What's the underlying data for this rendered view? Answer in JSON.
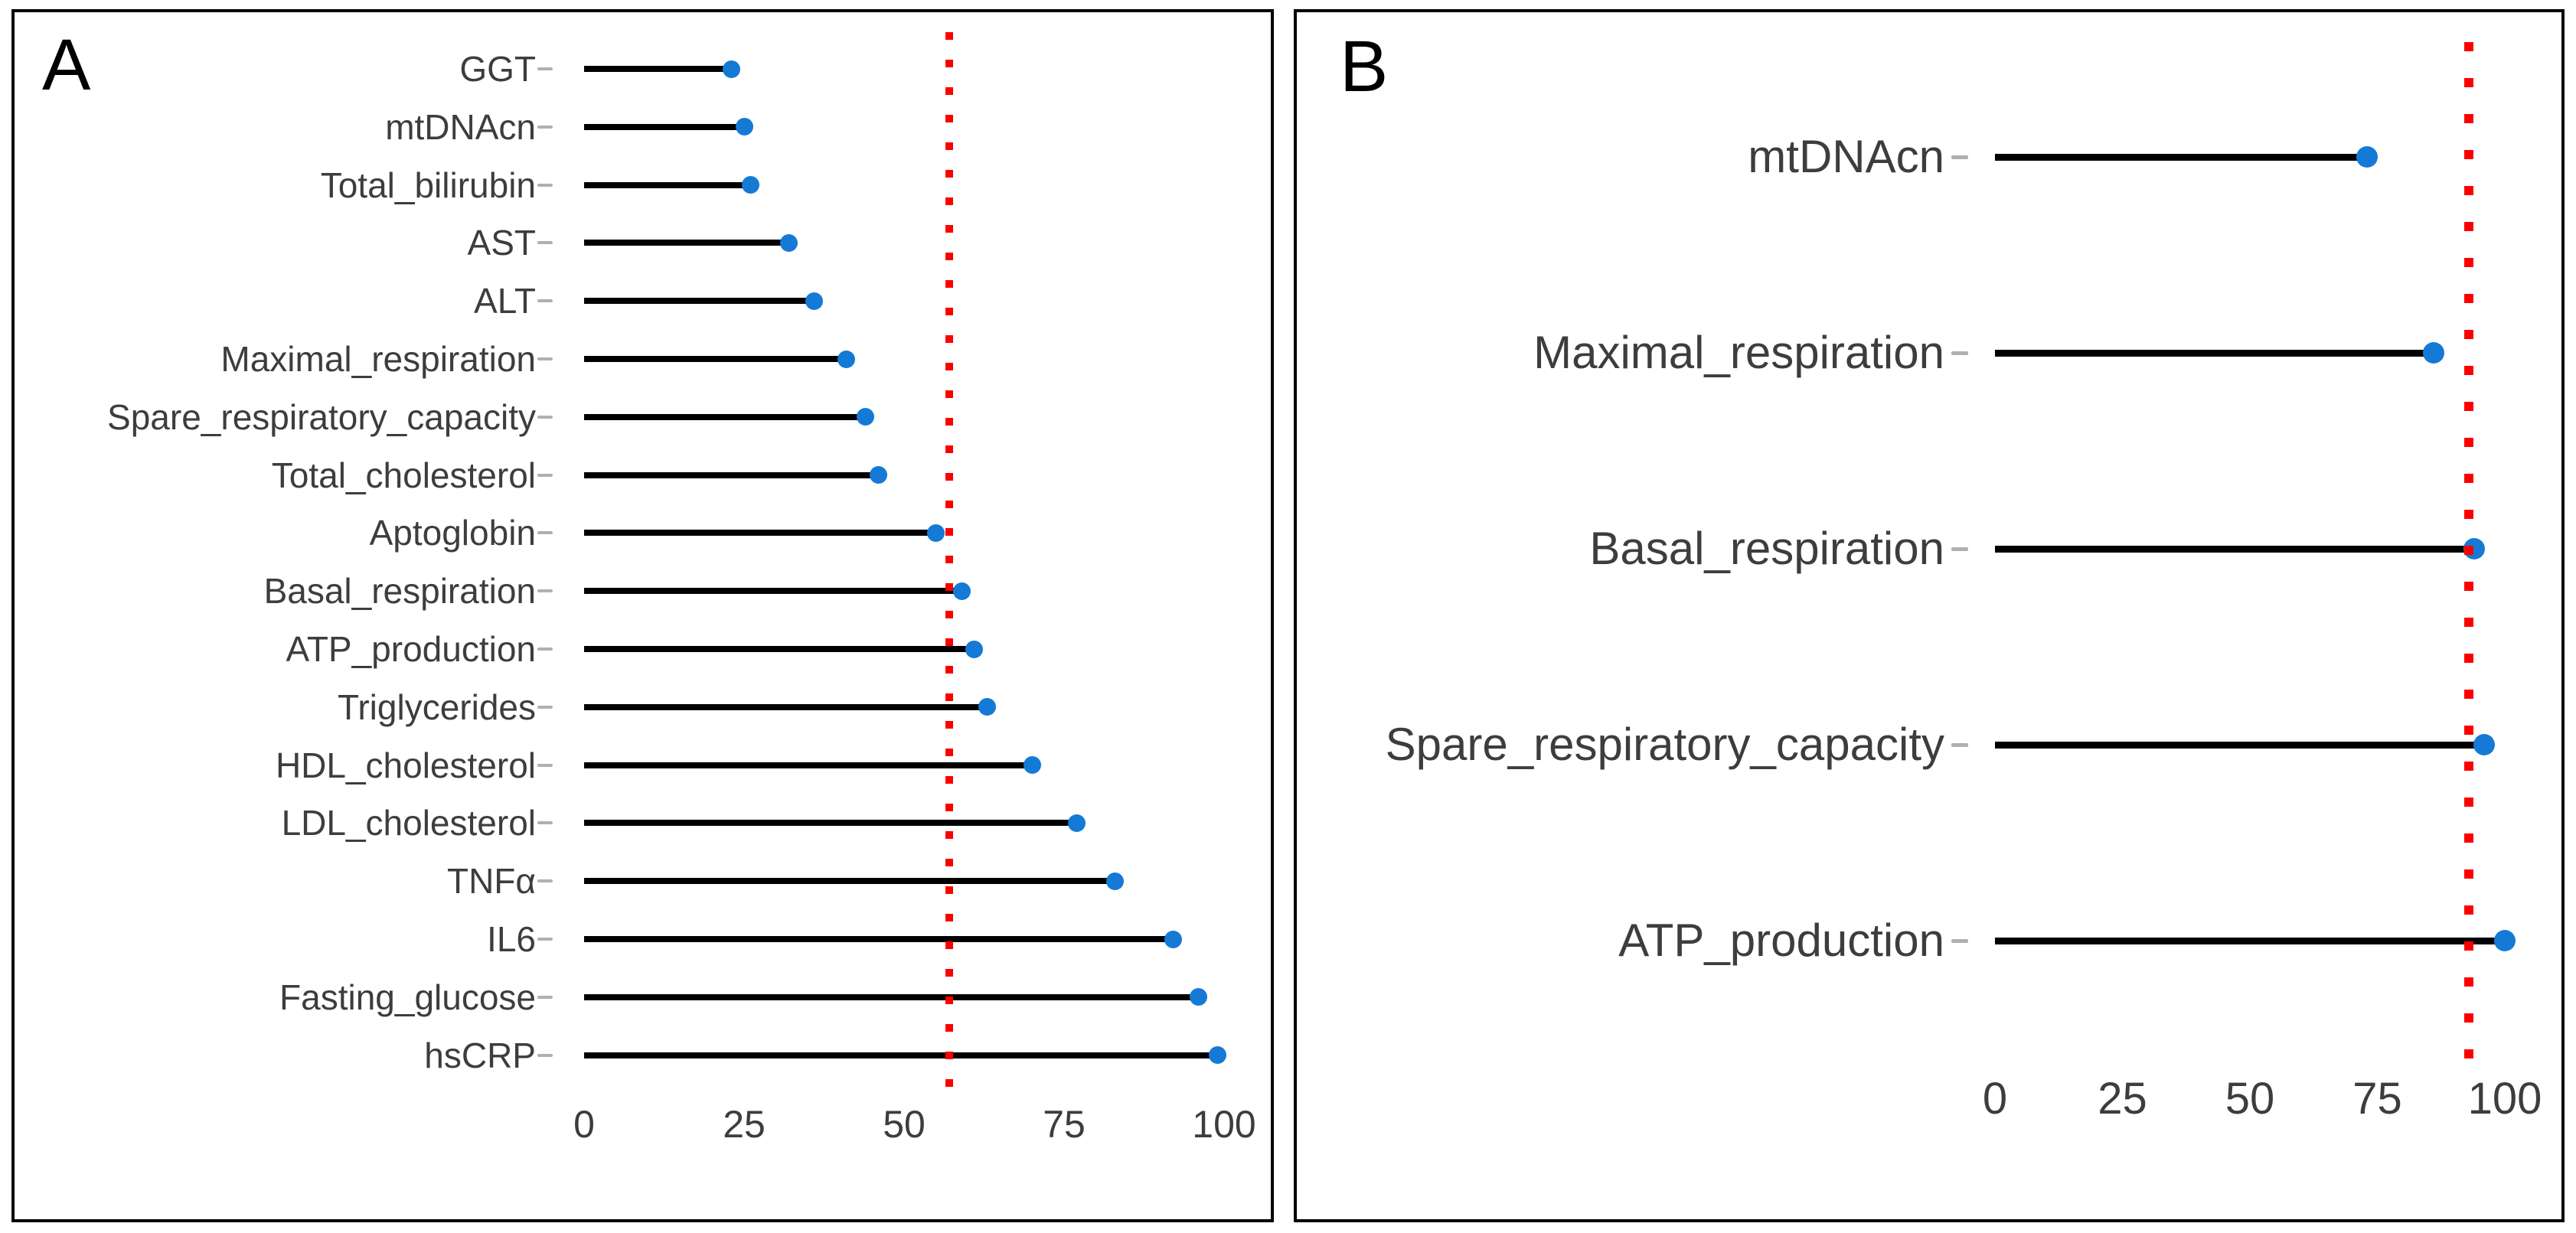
{
  "page": {
    "background": "#ffffff"
  },
  "chart_data": [
    {
      "type": "bar",
      "style": "lollipop",
      "orientation": "horizontal",
      "panel_label": "A",
      "categories": [
        "GGT",
        "mtDNAcn",
        "Total_bilirubin",
        "AST",
        "ALT",
        "Maximal_respiration",
        "Spare_respiratory_capacity",
        "Total_cholesterol",
        "Aptoglobin",
        "Basal_respiration",
        "ATP_production",
        "Triglycerides",
        "HDL_cholesterol",
        "LDL_cholesterol",
        "TNFα",
        "IL6",
        "Fasting_glucose",
        "hsCRP"
      ],
      "values": [
        23,
        25,
        26,
        32,
        36,
        41,
        44,
        46,
        55,
        59,
        61,
        63,
        70,
        77,
        83,
        92,
        96,
        99
      ],
      "x_tick_labels": [
        "0",
        "25",
        "50",
        "75",
        "100"
      ],
      "x_tick_values": [
        0,
        25,
        50,
        75,
        100
      ],
      "xlim": [
        0,
        100
      ],
      "reference_line_x": 57,
      "reference_line_style": "dotted",
      "grid": false,
      "legend": false,
      "colors": {
        "dot": "#147ad6",
        "stem": "#000000",
        "reference": "#fc0000",
        "category_label": "#3d3d3d",
        "tick_label": "#3d3d3d",
        "axis_tick_mark": "#b0b0b0",
        "panel_border": "#000000"
      }
    },
    {
      "type": "bar",
      "style": "lollipop",
      "orientation": "horizontal",
      "panel_label": "B",
      "categories": [
        "mtDNAcn",
        "Maximal_respiration",
        "Basal_respiration",
        "Spare_respiratory_capacity",
        "ATP_production"
      ],
      "values": [
        73,
        86,
        94,
        96,
        100
      ],
      "x_tick_labels": [
        "0",
        "25",
        "50",
        "75",
        "100"
      ],
      "x_tick_values": [
        0,
        25,
        50,
        75,
        100
      ],
      "xlim": [
        0,
        100
      ],
      "reference_line_x": 93,
      "reference_line_style": "dotted",
      "grid": false,
      "legend": false,
      "colors": {
        "dot": "#147ad6",
        "stem": "#000000",
        "reference": "#fc0000",
        "category_label": "#3d3d3d",
        "tick_label": "#3d3d3d",
        "axis_tick_mark": "#b0b0b0",
        "panel_border": "#000000"
      }
    }
  ]
}
